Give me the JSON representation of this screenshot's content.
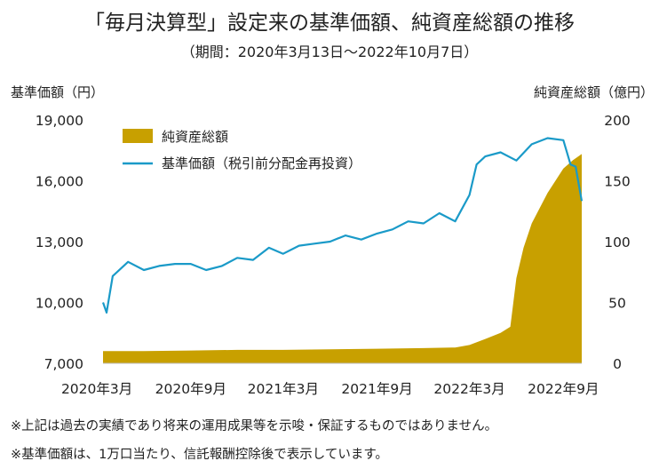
{
  "chart_data": {
    "type": "area+line",
    "title": "「毎月決算型」設定来の基準価額、純資産総額の推移",
    "subtitle": "（期間：2020年3月13日～2022年10月7日）",
    "ylabel_left": "基準価額（円）",
    "ylabel_right": "純資産総額（億円）",
    "ylim_left": [
      7000,
      19000
    ],
    "yticks_left": [
      "7,000",
      "10,000",
      "13,000",
      "16,000",
      "19,000"
    ],
    "ylim_right": [
      0,
      200
    ],
    "yticks_right": [
      "0",
      "50",
      "100",
      "150",
      "200"
    ],
    "xlim": [
      "2020-03-13",
      "2022-10-07"
    ],
    "xticks": [
      {
        "date": "2020-03-01",
        "label": "2020年3月"
      },
      {
        "date": "2020-09-01",
        "label": "2020年9月"
      },
      {
        "date": "2021-03-01",
        "label": "2021年3月"
      },
      {
        "date": "2021-09-01",
        "label": "2021年9月"
      },
      {
        "date": "2022-03-01",
        "label": "2022年3月"
      },
      {
        "date": "2022-09-01",
        "label": "2022年9月"
      }
    ],
    "legend": [
      "純資産総額",
      "基準価額（税引前分配金再投資）"
    ],
    "legend_placement": "top-left",
    "colors": {
      "area": "#C8A000",
      "line": "#1A9AC8"
    },
    "series": [
      {
        "name": "純資産総額",
        "axis": "right",
        "kind": "area",
        "points": [
          [
            "2020-03-13",
            10
          ],
          [
            "2020-06-01",
            10
          ],
          [
            "2020-09-01",
            10.5
          ],
          [
            "2020-12-01",
            11
          ],
          [
            "2021-03-01",
            11
          ],
          [
            "2021-06-01",
            11.5
          ],
          [
            "2021-09-01",
            12
          ],
          [
            "2021-12-01",
            12.5
          ],
          [
            "2022-02-01",
            13
          ],
          [
            "2022-03-01",
            15
          ],
          [
            "2022-04-01",
            20
          ],
          [
            "2022-05-01",
            25
          ],
          [
            "2022-05-20",
            30
          ],
          [
            "2022-06-01",
            70
          ],
          [
            "2022-06-15",
            95
          ],
          [
            "2022-07-01",
            115
          ],
          [
            "2022-08-01",
            140
          ],
          [
            "2022-09-01",
            160
          ],
          [
            "2022-09-20",
            167
          ],
          [
            "2022-10-07",
            172
          ]
        ]
      },
      {
        "name": "基準価額（税引前分配金再投資）",
        "axis": "left",
        "kind": "line",
        "points": [
          [
            "2020-03-13",
            10000
          ],
          [
            "2020-03-20",
            9500
          ],
          [
            "2020-04-01",
            11300
          ],
          [
            "2020-05-01",
            12000
          ],
          [
            "2020-06-01",
            11600
          ],
          [
            "2020-07-01",
            11800
          ],
          [
            "2020-08-01",
            11900
          ],
          [
            "2020-09-01",
            11900
          ],
          [
            "2020-10-01",
            11600
          ],
          [
            "2020-11-01",
            11800
          ],
          [
            "2020-12-01",
            12200
          ],
          [
            "2021-01-01",
            12100
          ],
          [
            "2021-02-01",
            12700
          ],
          [
            "2021-03-01",
            12400
          ],
          [
            "2021-04-01",
            12800
          ],
          [
            "2021-05-01",
            12900
          ],
          [
            "2021-06-01",
            13000
          ],
          [
            "2021-07-01",
            13300
          ],
          [
            "2021-08-01",
            13100
          ],
          [
            "2021-09-01",
            13400
          ],
          [
            "2021-10-01",
            13600
          ],
          [
            "2021-11-01",
            14000
          ],
          [
            "2021-12-01",
            13900
          ],
          [
            "2022-01-01",
            14400
          ],
          [
            "2022-02-01",
            14000
          ],
          [
            "2022-03-01",
            15300
          ],
          [
            "2022-03-15",
            16800
          ],
          [
            "2022-04-01",
            17200
          ],
          [
            "2022-05-01",
            17400
          ],
          [
            "2022-06-01",
            17000
          ],
          [
            "2022-07-01",
            17800
          ],
          [
            "2022-08-01",
            18100
          ],
          [
            "2022-09-01",
            18000
          ],
          [
            "2022-09-15",
            16800
          ],
          [
            "2022-09-25",
            16700
          ],
          [
            "2022-10-07",
            15000
          ]
        ]
      }
    ]
  },
  "notes": [
    "※上記は過去の実績であり将来の運用成果等を示唆・保証するものではありません。",
    "※基準価額は、1万口当たり、信託報酬控除後で表示しています。"
  ]
}
